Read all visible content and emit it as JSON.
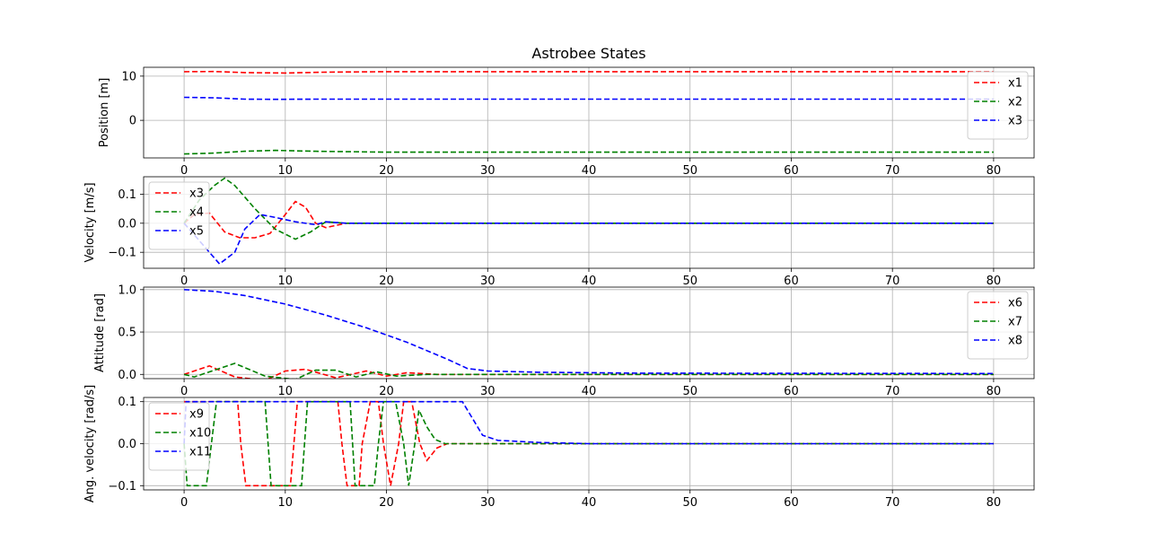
{
  "chart_data": [
    {
      "type": "line",
      "title": "Astrobee States",
      "ylabel": "Position [m]",
      "xlim": [
        -4,
        84
      ],
      "ylim": [
        -8.5,
        12
      ],
      "xticks": [
        0,
        10,
        20,
        30,
        40,
        50,
        60,
        70,
        80
      ],
      "yticks": [
        10,
        0
      ],
      "ytick_labels": [
        "10",
        "0"
      ],
      "grid": true,
      "legend": "right",
      "series": [
        {
          "name": "x1",
          "color": "#ff0000",
          "x": [
            0,
            3,
            6,
            10,
            14,
            20,
            40,
            80
          ],
          "y": [
            11.0,
            11.05,
            10.8,
            10.7,
            10.9,
            11.0,
            11.0,
            11.0
          ]
        },
        {
          "name": "x2",
          "color": "#008000",
          "x": [
            0,
            3,
            6,
            9,
            13,
            20,
            40,
            80
          ],
          "y": [
            -7.6,
            -7.4,
            -7.0,
            -6.8,
            -7.0,
            -7.2,
            -7.2,
            -7.2
          ]
        },
        {
          "name": "x3",
          "color": "#0000ff",
          "x": [
            0,
            3,
            6,
            9,
            13,
            20,
            40,
            80
          ],
          "y": [
            5.2,
            5.1,
            4.8,
            4.75,
            4.8,
            4.8,
            4.8,
            4.8
          ]
        }
      ]
    },
    {
      "type": "line",
      "ylabel": "Velocity [m/s]",
      "xlim": [
        -4,
        84
      ],
      "ylim": [
        -0.155,
        0.16
      ],
      "xticks": [
        0,
        10,
        20,
        30,
        40,
        50,
        60,
        70,
        80
      ],
      "yticks": [
        0.1,
        0.0,
        -0.1
      ],
      "ytick_labels": [
        "0.1",
        "0.0",
        "−0.1"
      ],
      "grid": true,
      "legend": "upper left",
      "series": [
        {
          "name": "x3",
          "color": "#ff0000",
          "x": [
            0,
            1,
            2.5,
            4,
            5.5,
            7,
            8.5,
            10,
            11,
            12,
            13,
            14,
            16,
            20,
            40,
            80
          ],
          "y": [
            0.0,
            0.03,
            0.035,
            -0.03,
            -0.05,
            -0.05,
            -0.035,
            0.03,
            0.075,
            0.055,
            0.0,
            -0.015,
            0.0,
            0.0,
            0.0,
            0.0
          ]
        },
        {
          "name": "x4",
          "color": "#008000",
          "x": [
            0,
            1.5,
            3,
            4,
            5,
            7,
            9,
            11,
            12.5,
            14,
            16,
            20,
            40,
            80
          ],
          "y": [
            0.0,
            0.08,
            0.13,
            0.155,
            0.13,
            0.05,
            -0.02,
            -0.055,
            -0.03,
            0.005,
            0.0,
            0.0,
            0.0,
            0.0
          ]
        },
        {
          "name": "x5",
          "color": "#0000ff",
          "x": [
            0,
            1.5,
            3.5,
            5,
            6,
            7.5,
            9,
            11,
            13,
            14,
            16,
            20,
            40,
            80
          ],
          "y": [
            0.0,
            -0.06,
            -0.14,
            -0.1,
            -0.02,
            0.03,
            0.02,
            0.005,
            -0.005,
            0.005,
            0.0,
            0.0,
            0.0,
            0.0
          ]
        }
      ]
    },
    {
      "type": "line",
      "ylabel": "Attitude [rad]",
      "xlim": [
        -4,
        84
      ],
      "ylim": [
        -0.05,
        1.03
      ],
      "xticks": [
        0,
        10,
        20,
        30,
        40,
        50,
        60,
        70,
        80
      ],
      "yticks": [
        1.0,
        0.5,
        0.0
      ],
      "ytick_labels": [
        "1.0",
        "0.5",
        "0.0"
      ],
      "grid": true,
      "legend": "right",
      "series": [
        {
          "name": "x6",
          "color": "#ff0000",
          "x": [
            0,
            2.5,
            5,
            8,
            10,
            12,
            15,
            18,
            20,
            22,
            25,
            30,
            40,
            80
          ],
          "y": [
            0.0,
            0.1,
            -0.03,
            -0.07,
            0.04,
            0.06,
            -0.04,
            0.04,
            -0.02,
            0.02,
            0.0,
            0.0,
            0.0,
            0.0
          ]
        },
        {
          "name": "x7",
          "color": "#008000",
          "x": [
            0,
            1,
            5,
            8,
            11,
            13,
            15,
            17,
            19,
            21,
            24,
            30,
            40,
            80
          ],
          "y": [
            0.0,
            -0.03,
            0.13,
            -0.02,
            -0.06,
            0.05,
            0.05,
            -0.03,
            0.03,
            -0.02,
            0.0,
            0.0,
            0.0,
            0.0
          ]
        },
        {
          "name": "x8",
          "color": "#0000ff",
          "x": [
            0,
            3,
            6,
            10,
            14,
            18,
            22,
            26,
            28,
            30,
            35,
            45,
            80
          ],
          "y": [
            1.0,
            0.98,
            0.93,
            0.83,
            0.7,
            0.55,
            0.38,
            0.18,
            0.07,
            0.04,
            0.025,
            0.015,
            0.01
          ]
        }
      ]
    },
    {
      "type": "line",
      "ylabel": "Ang. velocity [rad/s]",
      "xlim": [
        -4,
        84
      ],
      "ylim": [
        -0.11,
        0.11
      ],
      "xticks": [
        0,
        10,
        20,
        30,
        40,
        50,
        60,
        70,
        80
      ],
      "xtick_labels": [
        "0",
        "10",
        "20",
        "30",
        "40",
        "50",
        "60",
        "70",
        "80"
      ],
      "yticks": [
        0.1,
        0.0,
        -0.1
      ],
      "ytick_labels": [
        "0.1",
        "0.0",
        "−0.1"
      ],
      "grid": true,
      "legend": "upper left",
      "series": [
        {
          "name": "x9",
          "color": "#ff0000",
          "x": [
            0,
            0.3,
            2.2,
            5.3,
            5.6,
            6.1,
            10.5,
            11.2,
            15.2,
            15.6,
            16.1,
            17.3,
            17.6,
            18.4,
            19.2,
            19.7,
            20.4,
            21.2,
            21.7,
            22.5,
            23.3,
            24,
            25,
            26,
            30,
            40,
            80
          ],
          "y": [
            0.1,
            0.1,
            0.1,
            0.1,
            0.0,
            -0.1,
            -0.1,
            0.1,
            0.1,
            0.0,
            -0.1,
            -0.1,
            0.0,
            0.1,
            0.1,
            0.0,
            -0.1,
            0.0,
            0.1,
            0.1,
            0.0,
            -0.04,
            -0.01,
            0.0,
            0.0,
            0.0,
            0.0
          ]
        },
        {
          "name": "x10",
          "color": "#008000",
          "x": [
            0,
            0.3,
            2.2,
            2.7,
            3.2,
            8.0,
            8.6,
            11.6,
            12.2,
            16.4,
            16.9,
            18.8,
            19.2,
            19.7,
            20.9,
            21.7,
            22.2,
            22.8,
            23.2,
            24,
            24.8,
            25.8,
            27,
            30,
            40,
            80
          ],
          "y": [
            0.0,
            -0.1,
            -0.1,
            0.0,
            0.1,
            0.1,
            -0.1,
            -0.1,
            0.1,
            0.1,
            -0.1,
            -0.1,
            0.0,
            0.1,
            0.1,
            0.0,
            -0.1,
            0.0,
            0.08,
            0.04,
            0.01,
            0.0,
            0.0,
            0.0,
            0.0,
            0.0
          ]
        },
        {
          "name": "x11",
          "color": "#0000ff",
          "x": [
            0,
            0.2,
            27.5,
            28.5,
            29.5,
            31,
            35,
            40,
            80
          ],
          "y": [
            0.0,
            0.1,
            0.1,
            0.06,
            0.02,
            0.008,
            0.003,
            0.0,
            0.0
          ]
        }
      ]
    }
  ]
}
